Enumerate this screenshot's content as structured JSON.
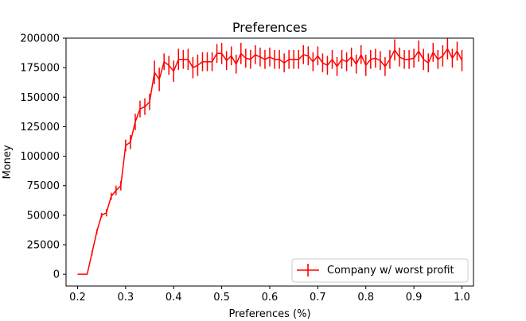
{
  "chart_data": {
    "type": "line",
    "title": "Preferences",
    "xlabel": "Preferences (%)",
    "ylabel": "Money",
    "xlim": [
      0.176,
      1.024
    ],
    "ylim": [
      -10000,
      200000
    ],
    "xticks": [
      0.2,
      0.3,
      0.4,
      0.5,
      0.6,
      0.7,
      0.8,
      0.9,
      1.0
    ],
    "xtick_labels": [
      "0.2",
      "0.3",
      "0.4",
      "0.5",
      "0.6",
      "0.7",
      "0.8",
      "0.9",
      "1.0"
    ],
    "yticks": [
      0,
      25000,
      50000,
      75000,
      100000,
      125000,
      150000,
      175000,
      200000
    ],
    "ytick_labels": [
      "0",
      "25000",
      "50000",
      "75000",
      "100000",
      "125000",
      "150000",
      "175000",
      "200000"
    ],
    "grid": false,
    "legend_position": "lower-right",
    "series": [
      {
        "name": "Company w/ worst profit",
        "color": "#ff0000",
        "x": [
          0.2,
          0.21,
          0.22,
          0.23,
          0.24,
          0.25,
          0.26,
          0.27,
          0.28,
          0.29,
          0.3,
          0.31,
          0.32,
          0.33,
          0.34,
          0.35,
          0.36,
          0.37,
          0.38,
          0.39,
          0.4,
          0.41,
          0.42,
          0.43,
          0.44,
          0.45,
          0.46,
          0.47,
          0.48,
          0.49,
          0.5,
          0.51,
          0.52,
          0.53,
          0.54,
          0.55,
          0.56,
          0.57,
          0.58,
          0.59,
          0.6,
          0.61,
          0.62,
          0.63,
          0.64,
          0.65,
          0.66,
          0.67,
          0.68,
          0.69,
          0.7,
          0.71,
          0.72,
          0.73,
          0.74,
          0.75,
          0.76,
          0.77,
          0.78,
          0.79,
          0.8,
          0.81,
          0.82,
          0.83,
          0.84,
          0.85,
          0.86,
          0.87,
          0.88,
          0.89,
          0.9,
          0.91,
          0.92,
          0.93,
          0.94,
          0.95,
          0.96,
          0.97,
          0.98,
          0.99,
          1.0
        ],
        "y": [
          0,
          0,
          0,
          18000,
          36000,
          50000,
          52000,
          66000,
          71000,
          75000,
          109000,
          112000,
          129000,
          140000,
          142000,
          146000,
          171000,
          165000,
          180000,
          177000,
          172000,
          182000,
          182000,
          182000,
          175000,
          177000,
          180000,
          180000,
          180000,
          187000,
          187000,
          181000,
          185000,
          178000,
          187000,
          183000,
          182000,
          186000,
          184000,
          182000,
          184000,
          182000,
          182000,
          179000,
          182000,
          182000,
          182000,
          186000,
          185000,
          180000,
          185000,
          179000,
          177000,
          182000,
          176000,
          182000,
          180000,
          184000,
          178000,
          186000,
          177000,
          182000,
          183000,
          181000,
          176000,
          182000,
          190000,
          184000,
          182000,
          182000,
          183000,
          189000,
          182000,
          179000,
          188000,
          182000,
          185000,
          191000,
          183000,
          189000,
          181000
        ],
        "yerr": [
          0,
          0,
          0,
          2000,
          2000,
          2000,
          3000,
          3000,
          4000,
          4000,
          5000,
          6000,
          7000,
          7000,
          7000,
          7000,
          10000,
          10000,
          7000,
          8000,
          9000,
          9000,
          8000,
          9000,
          9000,
          9000,
          8000,
          8000,
          8000,
          8000,
          9000,
          8000,
          8000,
          8000,
          9000,
          8000,
          8000,
          8000,
          8000,
          8000,
          8000,
          8000,
          8000,
          8000,
          8000,
          8000,
          8000,
          8000,
          8000,
          8000,
          8000,
          8000,
          8000,
          8000,
          8000,
          8000,
          8000,
          8000,
          8000,
          8000,
          9000,
          8000,
          8000,
          8000,
          8000,
          8000,
          9000,
          8000,
          8000,
          8000,
          8000,
          9000,
          9000,
          8000,
          8000,
          8000,
          9000,
          9000,
          8000,
          8000,
          9000
        ]
      }
    ]
  }
}
